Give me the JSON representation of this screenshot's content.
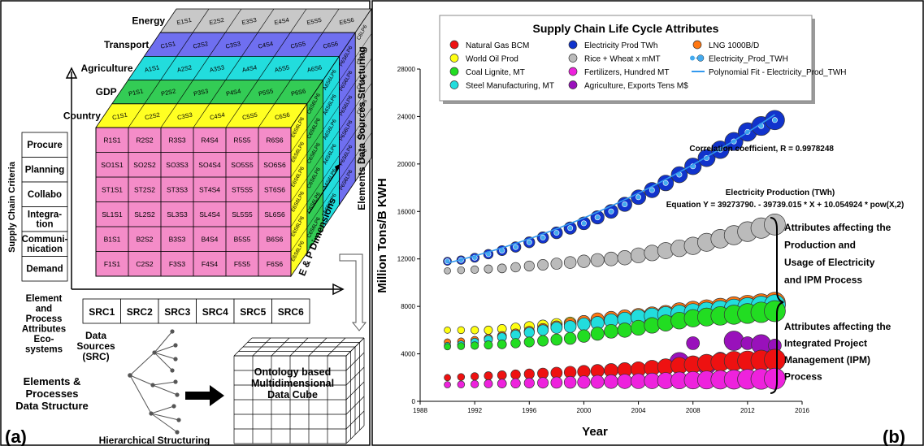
{
  "panel_a": {
    "letter": "(a)",
    "layers": [
      {
        "label": "Energy",
        "cells": [
          "E1S1",
          "E2S2",
          "E3S3",
          "E4S4",
          "E5S5",
          "E6S6"
        ],
        "color": "#c8c8c8"
      },
      {
        "label": "Transport",
        "cells": [
          "C1S1",
          "C2S2",
          "C3S3",
          "C4S4",
          "C5S5",
          "C6S6"
        ],
        "color": "#6f6ff0"
      },
      {
        "label": "Agriculture",
        "cells": [
          "A1S1",
          "A2S2",
          "A3S3",
          "A4S4",
          "A5S5",
          "A6S6"
        ],
        "color": "#22dddd"
      },
      {
        "label": "GDP",
        "cells": [
          "P1S1",
          "P2S2",
          "P3S3",
          "P4S4",
          "P5S5",
          "P6S6"
        ],
        "color": "#33cc55"
      },
      {
        "label": "Country",
        "cells": [
          "C1S1",
          "C2S2",
          "C3S3",
          "C4S4",
          "C5S5",
          "C6S6"
        ],
        "color": "#ffff22"
      }
    ],
    "front_rows": [
      [
        "R1S1",
        "R2S2",
        "R3S3",
        "R4S4",
        "R5S5",
        "R6S6"
      ],
      [
        "SO1S1",
        "SO2S2",
        "SO3S3",
        "SO4S4",
        "SO5S5",
        "SO6S6"
      ],
      [
        "ST1S1",
        "ST2S2",
        "ST3S3",
        "ST4S4",
        "ST5S5",
        "ST6S6"
      ],
      [
        "SL1S1",
        "SL2S2",
        "SL3S3",
        "SL4S4",
        "SL5S5",
        "SL6S6"
      ],
      [
        "B1S1",
        "B2S2",
        "B3S3",
        "B4S4",
        "B5S5",
        "B6S6"
      ],
      [
        "F1S1",
        "C2S2",
        "F3S3",
        "F4S4",
        "F5S5",
        "F6S6"
      ]
    ],
    "side_cells": [
      "C6LP6",
      "P6S6LP6",
      "A6S6LP6",
      "C6S6LP6",
      "E6S6LP6"
    ],
    "criteria_title": "Supply Chain Criteria",
    "criteria": [
      "Procure",
      "Planning",
      "Collabo",
      "Integra-\ntion",
      "Communi-\nnication",
      "Demand"
    ],
    "side_title": "Elements Data Sources Structuring",
    "dimension_label": "E & P Dimensions",
    "element_label": "Element\nand\nProcess\nAttributes\nEco-\nsystems",
    "sources": [
      "SRC1",
      "SRC2",
      "SRC3",
      "SRC4",
      "SRC5",
      "SRC6"
    ],
    "sources_label": "Data\nSources\n(SRC)",
    "tree_label": "Elements &\nProcesses\nData Structure",
    "hier_label": "Hierarchical Structuring",
    "cube_label": "Ontology based\nMultidimensional\nData Cube"
  },
  "panel_b": {
    "letter": "(b)",
    "legend_title": "Supply Chain Life Cycle Attributes",
    "legend_items": [
      {
        "label": "Natural Gas BCM",
        "color": "#ee1111"
      },
      {
        "label": "Electricity Prod TWh",
        "color": "#1133cc"
      },
      {
        "label": "LNG 1000B/D",
        "color": "#ff7711"
      },
      {
        "label": "World Oil Prod",
        "color": "#ffff11"
      },
      {
        "label": "Rice + Wheat x mMT",
        "color": "#bbbbbb"
      },
      {
        "label": "Electricity_Prod_TWH",
        "color": "#44aaee"
      },
      {
        "label": "Coal Lignite, MT",
        "color": "#22dd22"
      },
      {
        "label": "Fertilizers, Hundred MT",
        "color": "#ee22dd"
      },
      {
        "label": "Polynomial Fit - Electricity_Prod_TWH",
        "color": "#3399ee"
      },
      {
        "label": "Steel Manufacturing, MT",
        "color": "#22dddd"
      },
      {
        "label": "Agriculture, Exports Tens M$",
        "color": "#9911bb"
      }
    ],
    "corr_text": "Correlation coefficient, R = 0.9978248",
    "eq_title": "Electricity Production (TWh)",
    "eq_text": "Equation Y = 39273790. - 39739.015 * X + 10.054924 * pow(X,2)",
    "note1": [
      "Attributes affecting the",
      "Production and",
      "Usage of Electricity",
      "and IPM Process"
    ],
    "note2": [
      "Attributes affecting the",
      "Integrated Project",
      "Management (IPM)",
      "Process"
    ]
  },
  "chart_data": {
    "type": "scatter",
    "xlabel": "Year",
    "ylabel": "Million Tons/B KWH",
    "xlim": [
      1988,
      2016
    ],
    "ylim": [
      0,
      28000
    ],
    "xticks": [
      1988,
      1992,
      1996,
      2000,
      2004,
      2008,
      2012,
      2016
    ],
    "yticks": [
      0,
      4000,
      8000,
      12000,
      16000,
      20000,
      24000,
      28000
    ],
    "x": [
      1990,
      1991,
      1992,
      1993,
      1994,
      1995,
      1996,
      1997,
      1998,
      1999,
      2000,
      2001,
      2002,
      2003,
      2004,
      2005,
      2006,
      2007,
      2008,
      2009,
      2010,
      2011,
      2012,
      2013,
      2014
    ],
    "series": [
      {
        "name": "Rice + Wheat x mMT",
        "color": "#bbbbbb",
        "values": [
          11000,
          11050,
          11100,
          11150,
          11200,
          11300,
          11400,
          11500,
          11600,
          11700,
          11800,
          11900,
          12000,
          12100,
          12300,
          12500,
          12700,
          12900,
          13100,
          13400,
          13700,
          14000,
          14300,
          14600,
          14900
        ]
      },
      {
        "name": "World Oil Prod",
        "color": "#ffff11",
        "values": [
          6000,
          6000,
          6000,
          6000,
          6100,
          6200,
          6300,
          6400,
          6500,
          6600,
          6700,
          6800,
          6900,
          7000,
          7100,
          7200,
          7300,
          7400,
          7500,
          7600,
          7700,
          7800,
          7900,
          8000,
          8100
        ]
      },
      {
        "name": "LNG 1000B/D",
        "color": "#ff7711",
        "values": [
          5000,
          5050,
          5150,
          5300,
          5500,
          5700,
          5900,
          6100,
          6300,
          6500,
          6700,
          6900,
          7000,
          7100,
          7200,
          7300,
          7400,
          7600,
          7700,
          7800,
          7900,
          8000,
          8100,
          8200,
          8300
        ]
      },
      {
        "name": "Steel Manufacturing, MT",
        "color": "#22dddd",
        "values": [
          4700,
          4800,
          5000,
          5200,
          5400,
          5600,
          5800,
          6000,
          6200,
          6300,
          6500,
          6600,
          6800,
          6900,
          7100,
          7200,
          7300,
          7400,
          7500,
          7600,
          7700,
          7800,
          7900,
          8000,
          8100
        ]
      },
      {
        "name": "Coal Lignite, MT",
        "color": "#22dd22",
        "values": [
          4600,
          4650,
          4700,
          4750,
          4800,
          4900,
          5000,
          5100,
          5200,
          5300,
          5500,
          5700,
          5900,
          6000,
          6200,
          6400,
          6600,
          6800,
          7000,
          7100,
          7200,
          7300,
          7400,
          7500,
          7600
        ]
      },
      {
        "name": "Agriculture, Exports Tens M$",
        "color": "#9911bb",
        "values": [
          null,
          null,
          null,
          null,
          null,
          null,
          null,
          null,
          null,
          null,
          null,
          null,
          null,
          null,
          null,
          null,
          null,
          3300,
          4900,
          3100,
          3600,
          5100,
          4900,
          4800,
          4700
        ]
      },
      {
        "name": "Natural Gas BCM",
        "color": "#ee1111",
        "values": [
          2000,
          2050,
          2100,
          2150,
          2200,
          2250,
          2300,
          2350,
          2400,
          2450,
          2500,
          2550,
          2600,
          2650,
          2700,
          2800,
          2900,
          3000,
          3100,
          3200,
          3300,
          3400,
          3400,
          3450,
          3500
        ]
      },
      {
        "name": "Fertilizers, Hundred MT",
        "color": "#ee22dd",
        "values": [
          1400,
          1420,
          1450,
          1480,
          1500,
          1520,
          1540,
          1560,
          1580,
          1600,
          1620,
          1640,
          1660,
          1680,
          1700,
          1720,
          1740,
          1760,
          1780,
          1800,
          1820,
          1840,
          1860,
          1880,
          1900
        ]
      },
      {
        "name": "Electricity Prod TWh",
        "color": "#1133cc",
        "values": [
          11800,
          11900,
          12100,
          12400,
          12700,
          13000,
          13400,
          13800,
          14200,
          14600,
          15000,
          15500,
          16000,
          16600,
          17200,
          17800,
          18400,
          19100,
          19800,
          20500,
          21200,
          21900,
          22700,
          23200,
          23700
        ]
      }
    ],
    "fit": {
      "name": "Polynomial Fit - Electricity_Prod_TWH",
      "a": 39273790,
      "b": -39739.015,
      "c": 10.054924
    }
  }
}
